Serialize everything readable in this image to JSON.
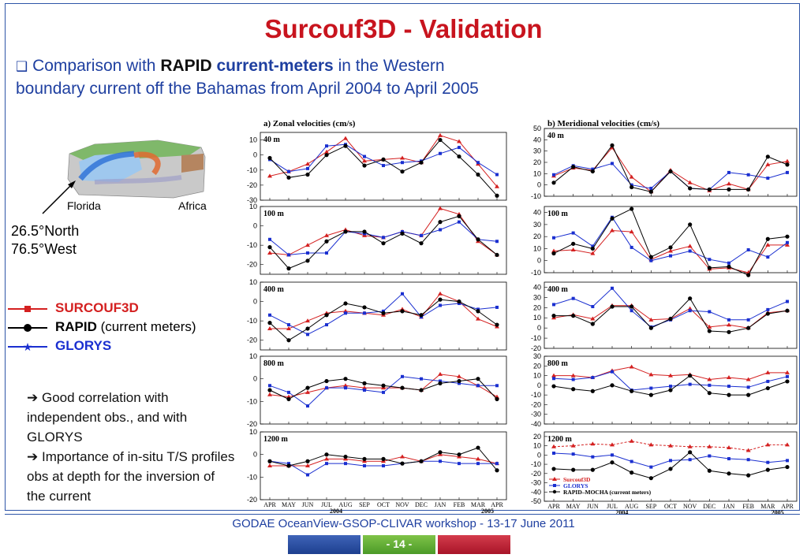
{
  "title": "Surcouf3D - Validation",
  "intro": {
    "bullet": "❑",
    "pre": " Comparison with ",
    "bold1": "RAPID",
    "bold2": "current-meters",
    "post": "  in the Western boundary current off the Bahamas from April 2004 to April 2005"
  },
  "map": {
    "label_left": "Florida",
    "label_right": "Africa"
  },
  "location": {
    "line1": "26.5°North",
    "line2": "76.5°West"
  },
  "legend": [
    {
      "label": "SURCOUF3D",
      "suffix": "",
      "color": "#d42020",
      "marker": "square"
    },
    {
      "label": "RAPID",
      "suffix": " (current meters)",
      "color": "#000000",
      "marker": "circle"
    },
    {
      "label": "GLORYS",
      "suffix": "",
      "color": "#1a2fd0",
      "marker": "star"
    }
  ],
  "notes": [
    "➔ Good correlation with independent obs., and with GLORYS",
    "➔ Importance of in-situ T/S profiles obs at depth for the inversion of the current"
  ],
  "footer": "GODAE OceanView-GSOP-CLIVAR workshop  -  13-17 June 2011",
  "page_number": "- 14 -",
  "colors": {
    "title": "#c8141e",
    "text": "#1e3fa0",
    "surcouf": "#d42020",
    "rapid": "#000000",
    "glorys": "#1a2fd0"
  },
  "chart_data": [
    {
      "type": "line",
      "title": "a)  Zonal  velocities  (cm/s)",
      "months": [
        "APR",
        "MAY",
        "JUN",
        "JUL",
        "AUG",
        "SEP",
        "OCT",
        "NOV",
        "DEC",
        "JAN",
        "FEB",
        "MAR",
        "APR"
      ],
      "years": [
        "2004",
        "2005"
      ],
      "panels": [
        {
          "label": "40 m",
          "ylim": [
            -30,
            15
          ],
          "ticks": [
            10,
            0,
            -10,
            -20,
            -30
          ],
          "series": [
            {
              "name": "SURCOUF3D",
              "values": [
                -14,
                -11,
                -6,
                2,
                11,
                -4,
                -3,
                -2,
                -5,
                13,
                9,
                -6,
                -21
              ]
            },
            {
              "name": "GLORYS",
              "values": [
                -3,
                -11,
                -9,
                6,
                7,
                -1,
                -7,
                -5,
                -4,
                1,
                5,
                -5,
                -13
              ]
            },
            {
              "name": "RAPID",
              "values": [
                -2,
                -15,
                -13,
                0,
                6,
                -7,
                -3,
                -11,
                -5,
                10,
                -1,
                -13,
                -27
              ]
            }
          ]
        },
        {
          "label": "100 m",
          "ylim": [
            -25,
            10
          ],
          "ticks": [
            10,
            0,
            -10,
            -20
          ],
          "series": [
            {
              "name": "SURCOUF3D",
              "values": [
                -14,
                -15,
                -10,
                -5,
                -2,
                -5,
                -6,
                -3,
                -5,
                9,
                6,
                -8,
                -15
              ]
            },
            {
              "name": "GLORYS",
              "values": [
                -7,
                -15,
                -14,
                -14,
                -3,
                -4,
                -6,
                -3,
                -5,
                -2,
                2,
                -7,
                -8
              ]
            },
            {
              "name": "RAPID",
              "values": [
                -11,
                -22,
                -18,
                -8,
                -3,
                -3,
                -9,
                -4,
                -9,
                2,
                5,
                -7,
                -15
              ]
            }
          ]
        },
        {
          "label": "400 m",
          "ylim": [
            -25,
            10
          ],
          "ticks": [
            10,
            0,
            -10,
            -20
          ],
          "series": [
            {
              "name": "SURCOUF3D",
              "values": [
                -14,
                -14,
                -10,
                -6,
                -5,
                -6,
                -7,
                -4,
                -8,
                4,
                0,
                -9,
                -13
              ]
            },
            {
              "name": "GLORYS",
              "values": [
                -7,
                -12,
                -17,
                -12,
                -6,
                -6,
                -5,
                4,
                -8,
                -2,
                -1,
                -4,
                -3
              ]
            },
            {
              "name": "RAPID",
              "values": [
                -11,
                -20,
                -14,
                -7,
                -1,
                -3,
                -6,
                -5,
                -7,
                1,
                0,
                -5,
                -12
              ]
            }
          ]
        },
        {
          "label": "800 m",
          "ylim": [
            -20,
            10
          ],
          "ticks": [
            10,
            0,
            -10,
            -20
          ],
          "series": [
            {
              "name": "SURCOUF3D",
              "values": [
                -7,
                -8,
                -6,
                -4,
                -3,
                -4,
                -4,
                -4,
                -5,
                2,
                1,
                -3,
                -8
              ]
            },
            {
              "name": "GLORYS",
              "values": [
                -3,
                -6,
                -12,
                -4,
                -4,
                -5,
                -6,
                1,
                0,
                -1,
                -2,
                -3,
                -3
              ]
            },
            {
              "name": "RAPID",
              "values": [
                -5,
                -9,
                -4,
                -1,
                0,
                -2,
                -3,
                -4,
                -5,
                -2,
                -1,
                0,
                -9
              ]
            }
          ]
        },
        {
          "label": "1200 m",
          "ylim": [
            -20,
            10
          ],
          "ticks": [
            10,
            0,
            -10,
            -20
          ],
          "series": [
            {
              "name": "SURCOUF3D",
              "values": [
                -5,
                -5,
                -5,
                -2,
                -2,
                -3,
                -3,
                -1,
                -3,
                0,
                -1,
                -2,
                -4
              ]
            },
            {
              "name": "GLORYS",
              "values": [
                -3,
                -4,
                -9,
                -4,
                -4,
                -5,
                -5,
                -4,
                -3,
                -3,
                -4,
                -4,
                -4
              ]
            },
            {
              "name": "RAPID",
              "values": [
                -3,
                -5,
                -3,
                0,
                -1,
                -2,
                -2,
                -4,
                -3,
                1,
                0,
                3,
                -7
              ]
            }
          ]
        }
      ]
    },
    {
      "type": "line",
      "title": "b)  Meridional  velocities  (cm/s)",
      "months": [
        "APR",
        "MAY",
        "JUN",
        "JUL",
        "AUG",
        "SEP",
        "OCT",
        "NOV",
        "DEC",
        "JAN",
        "FEB",
        "MAR",
        "APR"
      ],
      "years": [
        "2004",
        "2005"
      ],
      "panels": [
        {
          "label": "40 m",
          "ylim": [
            -10,
            50
          ],
          "ticks": [
            50,
            40,
            30,
            20,
            10,
            0,
            -10
          ],
          "series": [
            {
              "name": "SURCOUF3D",
              "values": [
                8,
                15,
                13,
                33,
                7,
                -6,
                13,
                2,
                -5,
                1,
                -4,
                18,
                21
              ]
            },
            {
              "name": "GLORYS",
              "values": [
                9,
                17,
                14,
                19,
                0,
                -3,
                12,
                -3,
                -4,
                11,
                9,
                6,
                11
              ]
            },
            {
              "name": "RAPID",
              "values": [
                2,
                16,
                12,
                35,
                -2,
                -6,
                12,
                -3,
                -4,
                -4,
                -4,
                25,
                18
              ]
            }
          ]
        },
        {
          "label": "100 m",
          "ylim": [
            -10,
            45
          ],
          "ticks": [
            40,
            30,
            20,
            10,
            0,
            -10
          ],
          "series": [
            {
              "name": "SURCOUF3D",
              "values": [
                8,
                9,
                6,
                25,
                24,
                1,
                8,
                12,
                -7,
                -6,
                -10,
                13,
                13
              ]
            },
            {
              "name": "GLORYS",
              "values": [
                19,
                23,
                12,
                36,
                11,
                0,
                4,
                8,
                1,
                -2,
                9,
                3,
                15
              ]
            },
            {
              "name": "RAPID",
              "values": [
                6,
                14,
                10,
                35,
                43,
                3,
                11,
                30,
                -6,
                -5,
                -12,
                18,
                20
              ]
            }
          ]
        },
        {
          "label": "400 m",
          "ylim": [
            -20,
            45
          ],
          "ticks": [
            40,
            30,
            20,
            10,
            0,
            -10,
            -20
          ],
          "series": [
            {
              "name": "SURCOUF3D",
              "values": [
                10,
                13,
                9,
                22,
                22,
                8,
                9,
                19,
                1,
                3,
                0,
                15,
                17
              ]
            },
            {
              "name": "GLORYS",
              "values": [
                23,
                29,
                21,
                39,
                17,
                1,
                8,
                17,
                16,
                8,
                8,
                18,
                26
              ]
            },
            {
              "name": "RAPID",
              "values": [
                12,
                12,
                4,
                21,
                21,
                0,
                9,
                29,
                -3,
                -4,
                0,
                14,
                17
              ]
            }
          ]
        },
        {
          "label": "800 m",
          "ylim": [
            -40,
            30
          ],
          "ticks": [
            30,
            20,
            10,
            0,
            -10,
            -20,
            -30,
            -40
          ],
          "series": [
            {
              "name": "SURCOUF3D",
              "values": [
                10,
                10,
                8,
                15,
                19,
                11,
                10,
                11,
                6,
                8,
                6,
                13,
                13
              ]
            },
            {
              "name": "GLORYS",
              "values": [
                7,
                6,
                8,
                14,
                -5,
                -3,
                -1,
                1,
                0,
                -1,
                -2,
                4,
                9
              ]
            },
            {
              "name": "RAPID",
              "values": [
                -1,
                -4,
                -6,
                0,
                -6,
                -10,
                -5,
                10,
                -8,
                -10,
                -10,
                -3,
                4
              ]
            }
          ]
        },
        {
          "label": "1200 m",
          "ylim": [
            -50,
            25
          ],
          "ticks": [
            20,
            10,
            0,
            -10,
            -20,
            -30,
            -40,
            -50
          ],
          "series": [
            {
              "name": "SURCOUF3D",
              "values": [
                9,
                10,
                12,
                11,
                15,
                11,
                10,
                9,
                9,
                8,
                5,
                11,
                11
              ]
            },
            {
              "name": "GLORYS",
              "values": [
                2,
                1,
                -2,
                0,
                -7,
                -13,
                -6,
                -5,
                -1,
                -4,
                -5,
                -8,
                -6
              ]
            },
            {
              "name": "RAPID",
              "values": [
                -15,
                -16,
                -16,
                -8,
                -19,
                -25,
                -15,
                3,
                -17,
                -20,
                -22,
                -16,
                -13
              ]
            }
          ]
        }
      ],
      "legend": [
        "Surcouf3D",
        "GLORYS",
        "RAPID–MOCHA (current meters)"
      ]
    }
  ]
}
